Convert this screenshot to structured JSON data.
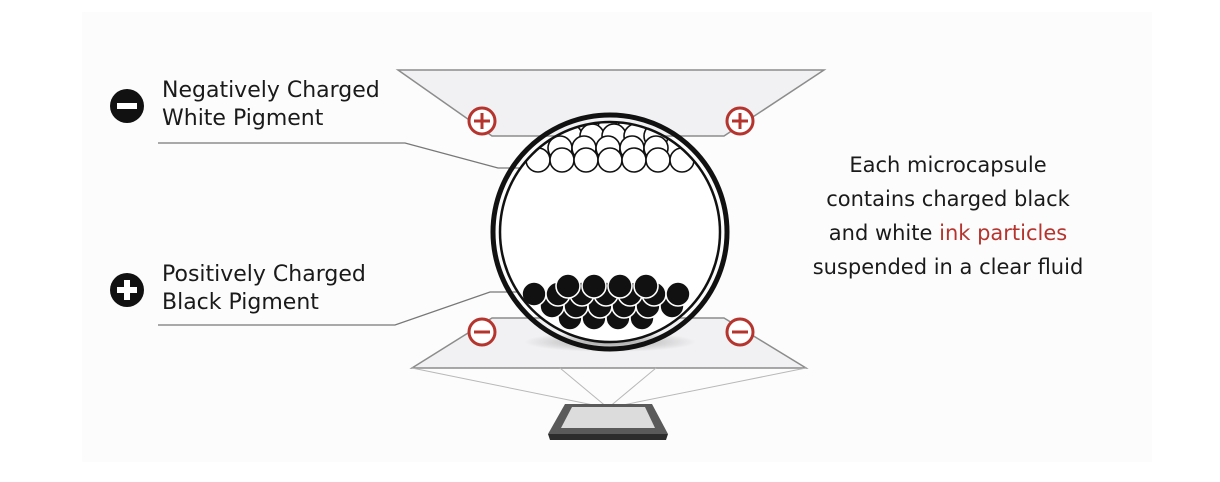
{
  "labels": {
    "negative_line1": "Negatively Charged",
    "negative_line2": "White Pigment",
    "positive_line1": "Positively Charged",
    "positive_line2": "Black Pigment"
  },
  "caption": {
    "line1": "Each microcapsule",
    "line2": "contains charged black",
    "line3_prefix": "and white ",
    "line3_highlight": "ink particles",
    "line4": "suspended in a clear fluid"
  },
  "icons": {
    "negative_badge": "minus-circle-icon",
    "positive_badge": "plus-circle-icon",
    "top_electrode_signs": "plus-icon",
    "bottom_electrode_signs": "minus-icon"
  },
  "colors": {
    "accent_red": "#b5352e",
    "text": "#1a1a1a",
    "electrode_fill": "#f2f2f4",
    "badge_fill": "#111111"
  }
}
